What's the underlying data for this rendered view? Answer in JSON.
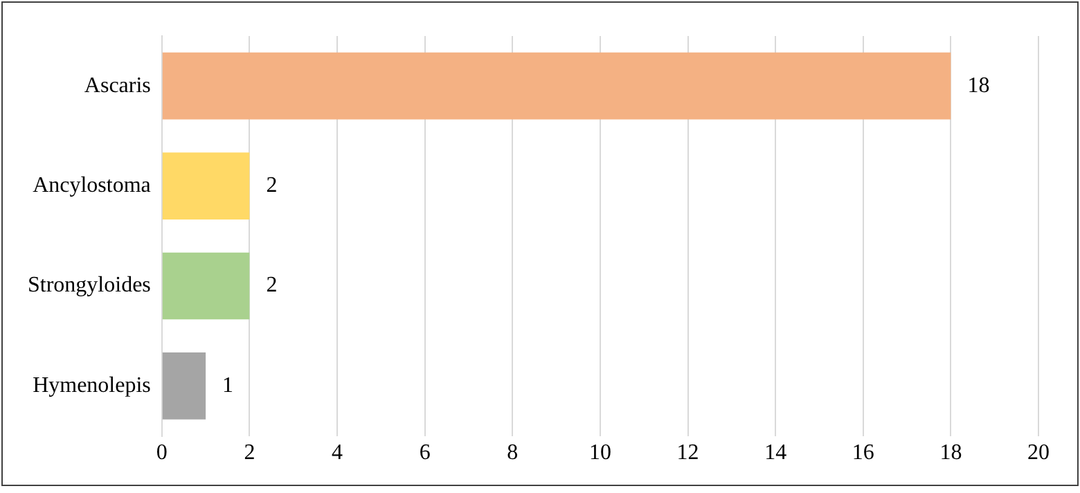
{
  "chart_data": {
    "type": "bar",
    "orientation": "horizontal",
    "categories": [
      "Ascaris",
      "Ancylostoma",
      "Strongyloides",
      "Hymenolepis"
    ],
    "values": [
      18,
      2,
      2,
      1
    ],
    "colors": [
      "#f4b183",
      "#ffd966",
      "#a9d18e",
      "#a5a5a5"
    ],
    "xlim": [
      0,
      20
    ],
    "xticks": [
      0,
      2,
      4,
      6,
      8,
      10,
      12,
      14,
      16,
      18,
      20
    ],
    "grid": "x",
    "legend": false,
    "data_labels": true
  }
}
